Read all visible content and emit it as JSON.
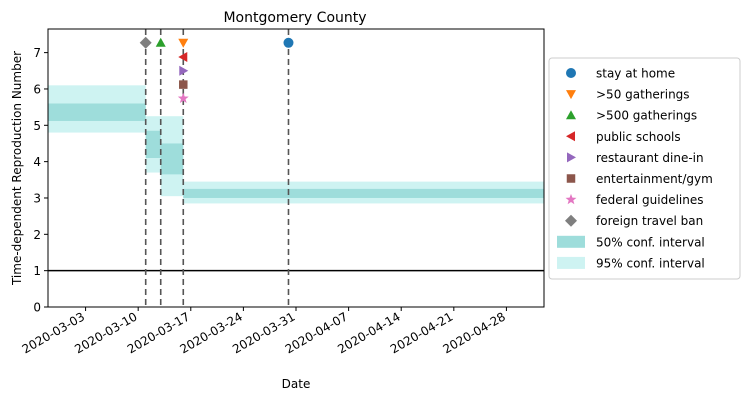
{
  "chart_data": {
    "type": "scatter",
    "title": "Montgomery County",
    "xlabel": "Date",
    "ylabel": "Time-dependent Reproduction Number",
    "x_type": "date",
    "xlim": [
      "2020-02-27",
      "2020-05-03"
    ],
    "ylim": [
      0,
      7.65
    ],
    "xticks": [
      "2020-03-03",
      "2020-03-10",
      "2020-03-17",
      "2020-03-24",
      "2020-03-31",
      "2020-04-07",
      "2020-04-14",
      "2020-04-21",
      "2020-04-28"
    ],
    "yticks": [
      0,
      1,
      2,
      3,
      4,
      5,
      6,
      7
    ],
    "grid": false,
    "legend_position": "right-outside",
    "reference_line": {
      "y": 1,
      "color": "#000000"
    },
    "bands": [
      {
        "start": "2020-02-27",
        "end": "2020-03-11",
        "ci50": [
          5.12,
          5.6
        ],
        "ci95": [
          4.8,
          6.1
        ]
      },
      {
        "start": "2020-03-11",
        "end": "2020-03-13",
        "ci50": [
          4.1,
          4.85
        ],
        "ci95": [
          3.7,
          5.25
        ]
      },
      {
        "start": "2020-03-13",
        "end": "2020-03-16",
        "ci50": [
          3.65,
          4.5
        ],
        "ci95": [
          3.05,
          5.25
        ]
      },
      {
        "start": "2020-03-16",
        "end": "2020-05-03",
        "ci50": [
          3.0,
          3.25
        ],
        "ci95": [
          2.85,
          3.45
        ]
      }
    ],
    "band_colors": {
      "ci50": "#9edddb",
      "ci95": "#cef3f2"
    },
    "vlines": [
      "2020-03-11",
      "2020-03-13",
      "2020-03-16",
      "2020-03-30"
    ],
    "series": [
      {
        "name": "stay at home",
        "marker": "circle",
        "color": "#1f77b4",
        "x": "2020-03-30",
        "y": 7.27
      },
      {
        "name": ">50 gatherings",
        "marker": "triangle-down",
        "color": "#ff7f0e",
        "x": "2020-03-16",
        "y": 7.27
      },
      {
        "name": ">500 gatherings",
        "marker": "triangle-up",
        "color": "#2ca02c",
        "x": "2020-03-13",
        "y": 7.27
      },
      {
        "name": "public schools",
        "marker": "triangle-left",
        "color": "#d62728",
        "x": "2020-03-16",
        "y": 6.88
      },
      {
        "name": "restaurant dine-in",
        "marker": "triangle-right",
        "color": "#9467bd",
        "x": "2020-03-16",
        "y": 6.5
      },
      {
        "name": "entertainment/gym",
        "marker": "square",
        "color": "#8c564b",
        "x": "2020-03-16",
        "y": 6.12
      },
      {
        "name": "federal guidelines",
        "marker": "star",
        "color": "#e377c2",
        "x": "2020-03-16",
        "y": 5.74
      },
      {
        "name": "foreign travel ban",
        "marker": "diamond",
        "color": "#7f7f7f",
        "x": "2020-03-11",
        "y": 7.27
      }
    ],
    "legend_band_labels": [
      "50% conf. interval",
      "95% conf. interval"
    ]
  }
}
